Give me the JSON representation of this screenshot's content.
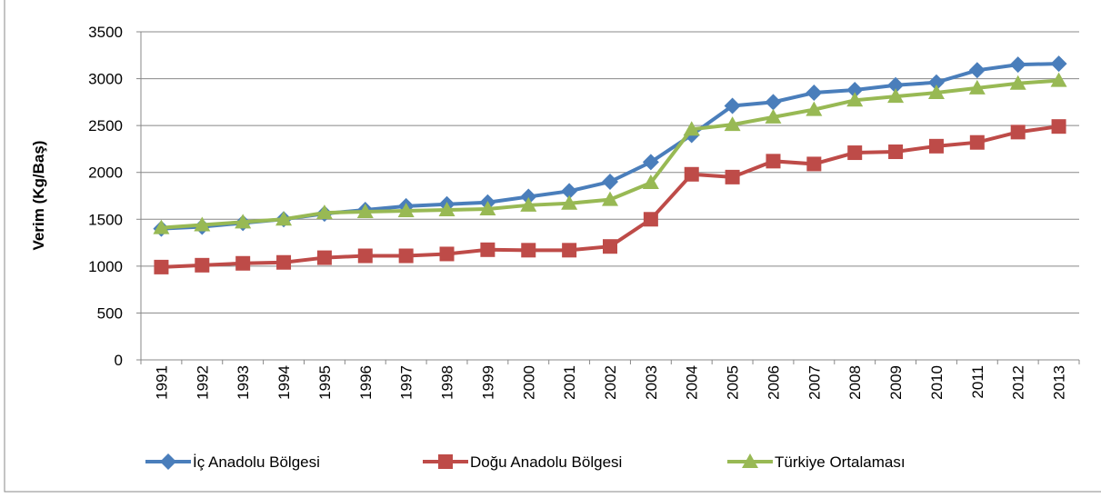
{
  "chart_data": {
    "type": "line",
    "ylabel": "Verim (Kg/Baş)",
    "categories": [
      "1991",
      "1992",
      "1993",
      "1994",
      "1995",
      "1996",
      "1997",
      "1998",
      "1999",
      "2000",
      "2001",
      "2002",
      "2003",
      "2004",
      "2005",
      "2006",
      "2007",
      "2008",
      "2009",
      "2010",
      "2011",
      "2012",
      "2013"
    ],
    "series": [
      {
        "name": "İç Anadolu Bölgesi",
        "color": "#4a7ebb",
        "marker": "diamond",
        "values": [
          1400,
          1420,
          1460,
          1500,
          1560,
          1600,
          1640,
          1660,
          1680,
          1740,
          1800,
          1900,
          2110,
          2400,
          2710,
          2750,
          2850,
          2880,
          2930,
          2960,
          3090,
          3150,
          3160
        ]
      },
      {
        "name": "Doğu Anadolu Bölgesi",
        "color": "#be4b48",
        "marker": "square",
        "values": [
          990,
          1010,
          1030,
          1040,
          1090,
          1110,
          1110,
          1130,
          1175,
          1170,
          1170,
          1210,
          1500,
          1980,
          1950,
          2120,
          2090,
          2210,
          2220,
          2280,
          2320,
          2430,
          2490
        ]
      },
      {
        "name": "Türkiye Ortalaması",
        "color": "#98b954",
        "marker": "triangle",
        "values": [
          1410,
          1440,
          1470,
          1500,
          1570,
          1580,
          1590,
          1600,
          1610,
          1650,
          1670,
          1710,
          1890,
          2460,
          2510,
          2590,
          2670,
          2770,
          2810,
          2850,
          2900,
          2950,
          2980
        ]
      }
    ],
    "ylim": [
      0,
      3500
    ],
    "yticks": [
      0,
      500,
      1000,
      1500,
      2000,
      2500,
      3000,
      3500
    ],
    "grid": true,
    "legend": "bottom"
  }
}
